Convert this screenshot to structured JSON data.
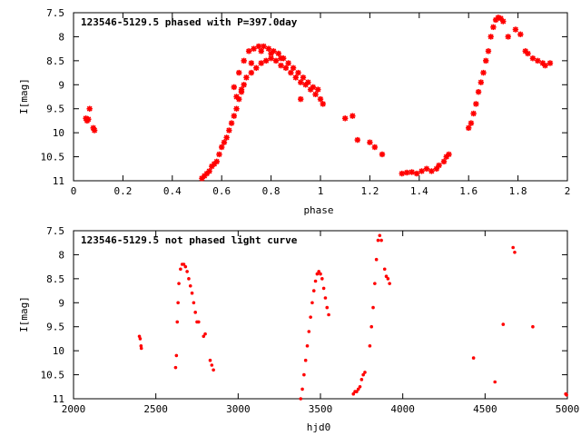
{
  "chart_data": [
    {
      "type": "scatter",
      "title": "123546-5129.5 phased with P=397.0day",
      "xlabel": "phase",
      "ylabel": "I[mag]",
      "xlim": [
        0,
        2
      ],
      "ylim": [
        11,
        7.5
      ],
      "y_inverted": true,
      "grid": false,
      "marker_color": "#ff0000",
      "marker": "star",
      "xticks": [
        "0",
        "0.2",
        "0.4",
        "0.6",
        "0.8",
        "1",
        "1.2",
        "1.4",
        "1.6",
        "1.8",
        "2"
      ],
      "yticks": [
        "7.5",
        "8",
        "8.5",
        "9",
        "9.5",
        "10",
        "10.5",
        "11"
      ],
      "series": [
        {
          "points": [
            [
              0.05,
              9.7
            ],
            [
              0.055,
              9.75
            ],
            [
              0.06,
              9.72
            ],
            [
              0.065,
              9.5
            ],
            [
              0.08,
              9.9
            ],
            [
              0.085,
              9.95
            ],
            [
              0.52,
              10.95
            ],
            [
              0.53,
              10.9
            ],
            [
              0.54,
              10.85
            ],
            [
              0.55,
              10.8
            ],
            [
              0.56,
              10.7
            ],
            [
              0.57,
              10.65
            ],
            [
              0.58,
              10.6
            ],
            [
              0.59,
              10.45
            ],
            [
              0.6,
              10.3
            ],
            [
              0.61,
              10.2
            ],
            [
              0.62,
              10.1
            ],
            [
              0.63,
              9.95
            ],
            [
              0.64,
              9.8
            ],
            [
              0.65,
              9.65
            ],
            [
              0.66,
              9.5
            ],
            [
              0.67,
              9.3
            ],
            [
              0.68,
              9.15
            ],
            [
              0.69,
              9.0
            ],
            [
              0.7,
              8.85
            ],
            [
              0.72,
              8.75
            ],
            [
              0.74,
              8.65
            ],
            [
              0.76,
              8.55
            ],
            [
              0.78,
              8.5
            ],
            [
              0.8,
              8.45
            ],
            [
              0.82,
              8.5
            ],
            [
              0.84,
              8.6
            ],
            [
              0.86,
              8.65
            ],
            [
              0.88,
              8.75
            ],
            [
              0.9,
              8.85
            ],
            [
              0.92,
              8.95
            ],
            [
              0.94,
              9.0
            ],
            [
              0.96,
              9.1
            ],
            [
              0.98,
              9.2
            ],
            [
              1.0,
              9.3
            ],
            [
              0.65,
              9.05
            ],
            [
              0.67,
              8.75
            ],
            [
              0.69,
              8.5
            ],
            [
              0.71,
              8.3
            ],
            [
              0.73,
              8.25
            ],
            [
              0.75,
              8.2
            ],
            [
              0.77,
              8.2
            ],
            [
              0.79,
              8.25
            ],
            [
              0.81,
              8.3
            ],
            [
              0.83,
              8.35
            ],
            [
              0.85,
              8.45
            ],
            [
              0.87,
              8.55
            ],
            [
              0.89,
              8.65
            ],
            [
              0.91,
              8.75
            ],
            [
              0.93,
              8.85
            ],
            [
              0.95,
              8.95
            ],
            [
              0.97,
              9.05
            ],
            [
              0.99,
              9.1
            ],
            [
              0.66,
              9.25
            ],
            [
              0.68,
              9.1
            ],
            [
              0.72,
              8.55
            ],
            [
              0.76,
              8.3
            ],
            [
              0.8,
              8.35
            ],
            [
              0.84,
              8.45
            ],
            [
              0.92,
              9.3
            ],
            [
              1.01,
              9.4
            ],
            [
              1.1,
              9.7
            ],
            [
              1.13,
              9.65
            ],
            [
              1.15,
              10.15
            ],
            [
              1.2,
              10.2
            ],
            [
              1.22,
              10.3
            ],
            [
              1.25,
              10.45
            ],
            [
              1.33,
              10.85
            ],
            [
              1.35,
              10.83
            ],
            [
              1.37,
              10.82
            ],
            [
              1.39,
              10.85
            ],
            [
              1.41,
              10.8
            ],
            [
              1.43,
              10.75
            ],
            [
              1.45,
              10.8
            ],
            [
              1.47,
              10.75
            ],
            [
              1.48,
              10.68
            ],
            [
              1.5,
              10.6
            ],
            [
              1.51,
              10.5
            ],
            [
              1.52,
              10.45
            ],
            [
              1.6,
              9.9
            ],
            [
              1.61,
              9.8
            ],
            [
              1.62,
              9.6
            ],
            [
              1.63,
              9.4
            ],
            [
              1.64,
              9.15
            ],
            [
              1.65,
              8.95
            ],
            [
              1.66,
              8.75
            ],
            [
              1.67,
              8.5
            ],
            [
              1.68,
              8.3
            ],
            [
              1.69,
              8.0
            ],
            [
              1.7,
              7.8
            ],
            [
              1.71,
              7.65
            ],
            [
              1.72,
              7.6
            ],
            [
              1.73,
              7.62
            ],
            [
              1.74,
              7.68
            ],
            [
              1.76,
              8.0
            ],
            [
              1.79,
              7.85
            ],
            [
              1.81,
              7.95
            ],
            [
              1.83,
              8.3
            ],
            [
              1.84,
              8.35
            ],
            [
              1.86,
              8.45
            ],
            [
              1.88,
              8.5
            ],
            [
              1.9,
              8.55
            ],
            [
              1.91,
              8.6
            ],
            [
              1.93,
              8.55
            ]
          ]
        }
      ]
    },
    {
      "type": "scatter",
      "title": "123546-5129.5 not phased light curve",
      "xlabel": "hjd0",
      "ylabel": "I[mag]",
      "xlim": [
        2000,
        5000
      ],
      "ylim": [
        11,
        7.5
      ],
      "y_inverted": true,
      "grid": false,
      "marker_color": "#ff0000",
      "marker": "dot",
      "xticks": [
        "2000",
        "2500",
        "3000",
        "3500",
        "4000",
        "4500",
        "5000"
      ],
      "yticks": [
        "7.5",
        "8",
        "8.5",
        "9",
        "9.5",
        "10",
        "10.5",
        "11"
      ],
      "series": [
        {
          "points": [
            [
              2400,
              9.7
            ],
            [
              2405,
              9.75
            ],
            [
              2410,
              9.9
            ],
            [
              2412,
              9.95
            ],
            [
              2620,
              10.35
            ],
            [
              2625,
              10.1
            ],
            [
              2630,
              9.4
            ],
            [
              2635,
              9.0
            ],
            [
              2640,
              8.6
            ],
            [
              2650,
              8.3
            ],
            [
              2660,
              8.2
            ],
            [
              2670,
              8.2
            ],
            [
              2680,
              8.25
            ],
            [
              2690,
              8.35
            ],
            [
              2700,
              8.5
            ],
            [
              2710,
              8.65
            ],
            [
              2720,
              8.8
            ],
            [
              2730,
              9.0
            ],
            [
              2740,
              9.2
            ],
            [
              2750,
              9.4
            ],
            [
              2760,
              9.4
            ],
            [
              2790,
              9.7
            ],
            [
              2800,
              9.65
            ],
            [
              2830,
              10.2
            ],
            [
              2840,
              10.3
            ],
            [
              2850,
              10.4
            ],
            [
              3380,
              11.0
            ],
            [
              3390,
              10.8
            ],
            [
              3400,
              10.5
            ],
            [
              3410,
              10.2
            ],
            [
              3420,
              9.9
            ],
            [
              3430,
              9.6
            ],
            [
              3440,
              9.3
            ],
            [
              3450,
              9.0
            ],
            [
              3460,
              8.75
            ],
            [
              3470,
              8.55
            ],
            [
              3480,
              8.4
            ],
            [
              3490,
              8.35
            ],
            [
              3500,
              8.4
            ],
            [
              3510,
              8.5
            ],
            [
              3520,
              8.7
            ],
            [
              3530,
              8.9
            ],
            [
              3540,
              9.1
            ],
            [
              3550,
              9.25
            ],
            [
              3700,
              10.9
            ],
            [
              3710,
              10.85
            ],
            [
              3720,
              10.85
            ],
            [
              3730,
              10.8
            ],
            [
              3740,
              10.75
            ],
            [
              3750,
              10.6
            ],
            [
              3760,
              10.5
            ],
            [
              3770,
              10.45
            ],
            [
              3800,
              9.9
            ],
            [
              3810,
              9.5
            ],
            [
              3820,
              9.1
            ],
            [
              3830,
              8.6
            ],
            [
              3840,
              8.1
            ],
            [
              3850,
              7.7
            ],
            [
              3860,
              7.6
            ],
            [
              3870,
              7.7
            ],
            [
              3890,
              8.3
            ],
            [
              3900,
              8.45
            ],
            [
              3910,
              8.5
            ],
            [
              3920,
              8.6
            ],
            [
              4430,
              10.15
            ],
            [
              4560,
              10.65
            ],
            [
              4610,
              9.45
            ],
            [
              4670,
              7.85
            ],
            [
              4680,
              7.95
            ],
            [
              4790,
              9.5
            ],
            [
              4990,
              10.9
            ],
            [
              4995,
              10.92
            ]
          ]
        }
      ]
    }
  ]
}
